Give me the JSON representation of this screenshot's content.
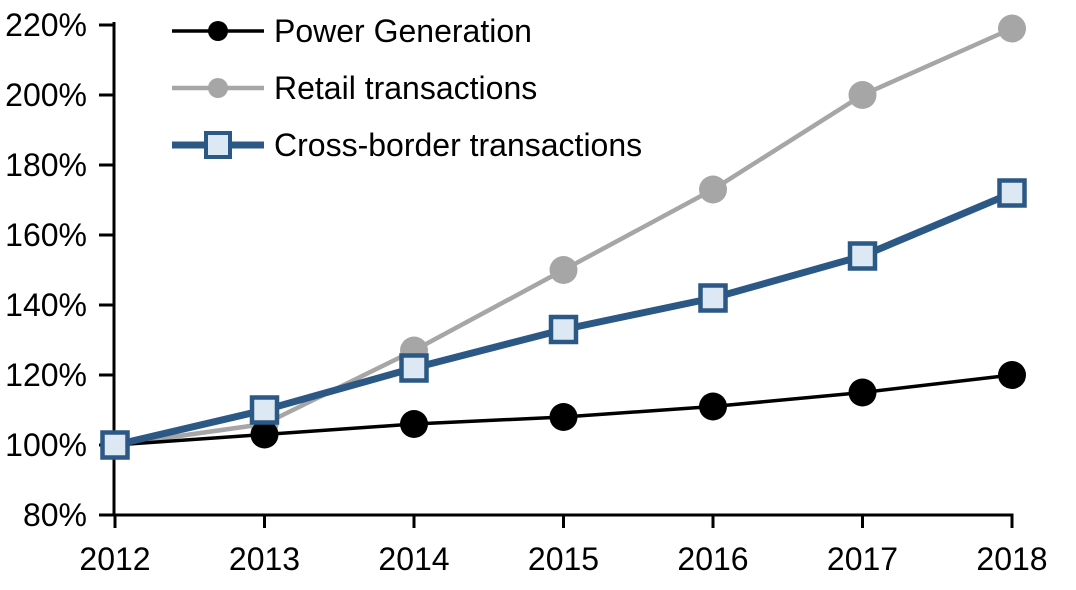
{
  "chart_data": {
    "type": "line",
    "title": "",
    "xlabel": "",
    "ylabel": "",
    "x": [
      2012,
      2013,
      2014,
      2015,
      2016,
      2017,
      2018
    ],
    "x_labels": [
      "2012",
      "2013",
      "2014",
      "2015",
      "2016",
      "2017",
      "2018"
    ],
    "series": [
      {
        "name": "Power Generation",
        "values": [
          100,
          103,
          106,
          108,
          111,
          115,
          120
        ],
        "color": "#000000",
        "marker": "circle",
        "marker_fill": "#000000",
        "marker_border": "#000000",
        "line_width": 3.5,
        "z": 2
      },
      {
        "name": "Retail transactions",
        "values": [
          100,
          106,
          127,
          150,
          173,
          200,
          219
        ],
        "color": "#A6A6A6",
        "marker": "circle",
        "marker_fill": "#A6A6A6",
        "marker_border": "#A6A6A6",
        "line_width": 4.5,
        "z": 1
      },
      {
        "name": "Cross-border transactions",
        "values": [
          100,
          110,
          122,
          133,
          142,
          154,
          172
        ],
        "color": "#2B5884",
        "marker": "square",
        "marker_fill": "#DCE8F4",
        "marker_border": "#2B5884",
        "line_width": 7,
        "z": 3
      }
    ],
    "y_ticks": [
      {
        "value": 80,
        "label": "80%"
      },
      {
        "value": 100,
        "label": "100%"
      },
      {
        "value": 120,
        "label": "120%"
      },
      {
        "value": 140,
        "label": "140%"
      },
      {
        "value": 160,
        "label": "160%"
      },
      {
        "value": 180,
        "label": "180%"
      },
      {
        "value": 200,
        "label": "200%"
      },
      {
        "value": 220,
        "label": "220%"
      }
    ],
    "ylim": [
      80,
      220
    ],
    "grid": false,
    "legend_position": "top-left",
    "axis_color": "#000000",
    "text_color": "#000000",
    "background_color": "#FFFFFF"
  }
}
